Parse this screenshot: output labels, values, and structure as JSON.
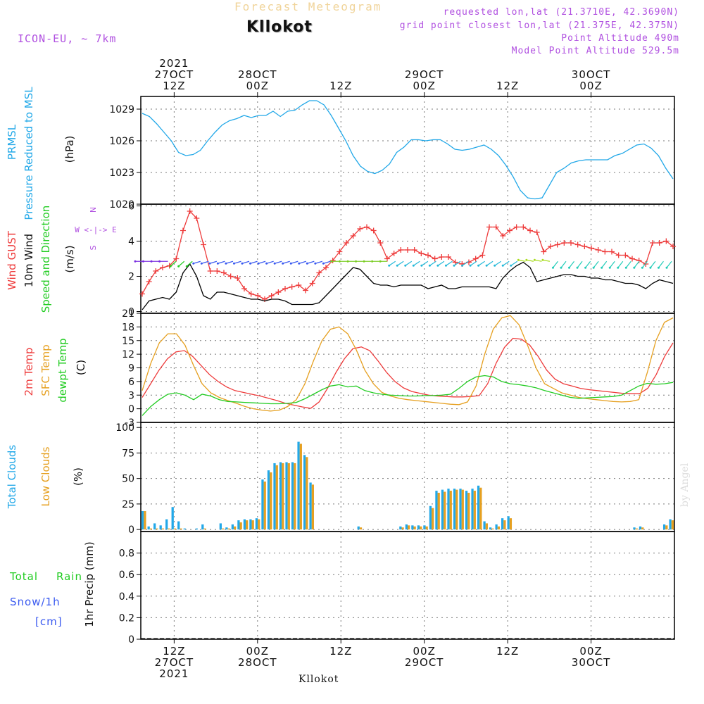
{
  "header": {
    "title": "Forecast Meteogram",
    "location": "Kllokot",
    "model": "ICON-EU, ~ 7km",
    "requested": "requested lon,lat (21.3710E, 42.3690N)",
    "grid_point": "grid point closest lon,lat (21.375E, 42.375N)",
    "point_altitude": "Point Altitude 490m",
    "model_altitude": "Model Point Altitude 529.5m",
    "watermark": "by Angel",
    "bottom_label": "Kllokot"
  },
  "time_axis": {
    "start_hour": 0,
    "end_hour": 96,
    "ticks": [
      {
        "hour": 6,
        "top": [
          "2021",
          "27OCT",
          "12Z"
        ],
        "bottom": [
          "12Z",
          "27OCT",
          "2021"
        ]
      },
      {
        "hour": 21,
        "top": [
          "28OCT",
          "00Z"
        ],
        "bottom": [
          "00Z",
          "28OCT"
        ]
      },
      {
        "hour": 36,
        "top": [
          "12Z"
        ],
        "bottom": [
          "12Z"
        ]
      },
      {
        "hour": 51,
        "top": [
          "29OCT",
          "00Z"
        ],
        "bottom": [
          "00Z",
          "29OCT"
        ]
      },
      {
        "hour": 66,
        "top": [
          "12Z"
        ],
        "bottom": [
          "12Z"
        ]
      },
      {
        "hour": 81,
        "top": [
          "30OCT",
          "00Z"
        ],
        "bottom": [
          "00Z",
          "30OCT"
        ]
      }
    ]
  },
  "colors": {
    "pressure": "#22a8e8",
    "gust": "#ee3b3b",
    "wind": "#000000",
    "temp2m": "#ee3b3b",
    "sfc": "#e6a020",
    "dewpt": "#22cc22",
    "total_clouds": "#22a8e8",
    "low_clouds": "#e6a020",
    "rain": "#22cc22",
    "snow": "#3a5af0",
    "direction": "#b050e0"
  },
  "chart_data": [
    {
      "type": "line",
      "panel": "pressure",
      "ylabels": [
        "PRMSL",
        "Pressure Reduced to MSL"
      ],
      "unit": "(hPa)",
      "ylim": [
        1020,
        1030.2
      ],
      "yticks": [
        1020,
        1023,
        1026,
        1029
      ],
      "series": [
        {
          "name": "PRMSL",
          "color": "#22a8e8",
          "values": [
            1028.6,
            1028.3,
            1027.6,
            1026.8,
            1026.0,
            1024.9,
            1024.6,
            1024.7,
            1025.1,
            1026.0,
            1026.8,
            1027.5,
            1027.9,
            1028.1,
            1028.4,
            1028.2,
            1028.4,
            1028.4,
            1028.8,
            1028.3,
            1028.8,
            1028.9,
            1029.4,
            1029.8,
            1029.8,
            1029.4,
            1028.4,
            1027.2,
            1026.0,
            1024.6,
            1023.6,
            1023.1,
            1022.9,
            1023.2,
            1023.8,
            1024.9,
            1025.4,
            1026.1,
            1026.1,
            1026.0,
            1026.1,
            1026.1,
            1025.7,
            1025.2,
            1025.1,
            1025.2,
            1025.4,
            1025.6,
            1025.2,
            1024.6,
            1023.7,
            1022.6,
            1021.3,
            1020.6,
            1020.5,
            1020.6,
            1021.8,
            1023.0,
            1023.4,
            1023.9,
            1024.1,
            1024.2,
            1024.2,
            1024.2,
            1024.2,
            1024.6,
            1024.8,
            1025.2,
            1025.6,
            1025.7,
            1025.3,
            1024.6,
            1023.4,
            1022.4
          ]
        }
      ]
    },
    {
      "type": "line",
      "panel": "wind",
      "ylabels": [
        "Wind GUST",
        "10m Wind",
        "Speed and Direction"
      ],
      "unit": "(m/s)",
      "compass": [
        "N",
        "W <-|-> E",
        "S"
      ],
      "ylim": [
        -0.1,
        6.1
      ],
      "yticks": [
        0,
        2,
        4,
        6
      ],
      "series": [
        {
          "name": "Wind GUST",
          "color": "#ee3b3b",
          "values": [
            1.0,
            1.7,
            2.3,
            2.5,
            2.6,
            3.0,
            4.6,
            5.7,
            5.3,
            3.8,
            2.3,
            2.3,
            2.2,
            2.0,
            1.9,
            1.3,
            1.0,
            0.9,
            0.7,
            0.9,
            1.1,
            1.3,
            1.4,
            1.5,
            1.2,
            1.6,
            2.2,
            2.5,
            2.9,
            3.4,
            3.9,
            4.3,
            4.7,
            4.8,
            4.6,
            3.9,
            3.0,
            3.3,
            3.5,
            3.5,
            3.5,
            3.3,
            3.2,
            3.0,
            3.1,
            3.1,
            2.8,
            2.7,
            2.8,
            3.0,
            3.2,
            4.8,
            4.8,
            4.3,
            4.6,
            4.8,
            4.8,
            4.6,
            4.5,
            3.4,
            3.7,
            3.8,
            3.9,
            3.9,
            3.8,
            3.7,
            3.6,
            3.5,
            3.4,
            3.4,
            3.2,
            3.2,
            3.0,
            2.9,
            2.7,
            3.9,
            3.9,
            4.0,
            3.7
          ]
        },
        {
          "name": "10m Wind",
          "color": "#000000",
          "values": [
            0.1,
            0.6,
            0.7,
            0.8,
            0.7,
            1.1,
            2.2,
            2.7,
            2.0,
            0.9,
            0.7,
            1.1,
            1.1,
            1.0,
            0.9,
            0.8,
            0.7,
            0.7,
            0.6,
            0.7,
            0.7,
            0.6,
            0.4,
            0.4,
            0.4,
            0.4,
            0.5,
            0.9,
            1.3,
            1.7,
            2.1,
            2.5,
            2.4,
            2.0,
            1.6,
            1.5,
            1.5,
            1.4,
            1.5,
            1.5,
            1.5,
            1.5,
            1.3,
            1.4,
            1.5,
            1.3,
            1.3,
            1.4,
            1.4,
            1.4,
            1.4,
            1.4,
            1.3,
            1.9,
            2.3,
            2.6,
            2.8,
            2.5,
            1.7,
            1.8,
            1.9,
            2.0,
            2.1,
            2.1,
            2.0,
            2.0,
            1.9,
            1.9,
            1.8,
            1.8,
            1.7,
            1.6,
            1.6,
            1.5,
            1.3,
            1.6,
            1.8,
            1.7,
            1.6
          ]
        }
      ],
      "barb_line": 2.85
    },
    {
      "type": "line",
      "panel": "temperature",
      "ylabels": [
        "2m Temp",
        "SFC Temp",
        "dewpt Temp"
      ],
      "unit": "(C)",
      "ylim": [
        -3,
        21
      ],
      "yticks": [
        -3,
        0,
        3,
        6,
        9,
        12,
        15,
        18,
        21
      ],
      "series": [
        {
          "name": "2m Temp",
          "color": "#ee3b3b",
          "values": [
            2.5,
            5.5,
            8.5,
            11.0,
            12.5,
            12.8,
            11.5,
            9.5,
            7.5,
            6.0,
            4.8,
            4.0,
            3.6,
            3.2,
            2.8,
            2.3,
            1.8,
            1.2,
            0.8,
            0.4,
            0.1,
            1.5,
            4.5,
            8.0,
            11.0,
            13.2,
            13.6,
            12.8,
            10.5,
            8.0,
            6.0,
            4.6,
            3.8,
            3.4,
            3.0,
            2.8,
            2.7,
            2.6,
            2.6,
            2.7,
            2.9,
            5.5,
            10.0,
            13.5,
            15.5,
            15.3,
            14.0,
            11.5,
            8.5,
            6.5,
            5.5,
            5.0,
            4.5,
            4.2,
            4.0,
            3.8,
            3.6,
            3.4,
            3.3,
            3.3,
            4.5,
            7.5,
            11.5,
            14.5
          ]
        },
        {
          "name": "SFC Temp",
          "color": "#e6a020",
          "values": [
            4.0,
            10.0,
            14.5,
            16.5,
            16.5,
            14.0,
            9.5,
            5.5,
            3.5,
            2.5,
            1.8,
            1.2,
            0.5,
            0.0,
            -0.3,
            -0.5,
            -0.3,
            0.5,
            2.0,
            5.5,
            10.5,
            15.0,
            17.5,
            18.0,
            16.5,
            13.0,
            8.5,
            5.5,
            3.6,
            2.8,
            2.3,
            2.0,
            1.8,
            1.6,
            1.4,
            1.2,
            1.0,
            0.9,
            1.5,
            5.0,
            12.0,
            17.5,
            20.0,
            20.5,
            18.5,
            14.0,
            9.0,
            5.5,
            4.5,
            3.5,
            3.0,
            2.5,
            2.2,
            2.0,
            1.8,
            1.6,
            1.5,
            1.6,
            2.0,
            8.0,
            15.0,
            19.0,
            20.0
          ]
        },
        {
          "name": "dewpt Temp",
          "color": "#22cc22",
          "values": [
            -1.5,
            0.5,
            2.0,
            3.2,
            3.5,
            3.0,
            2.0,
            3.2,
            2.8,
            2.0,
            1.6,
            1.5,
            1.4,
            1.3,
            1.2,
            1.1,
            1.1,
            1.2,
            1.4,
            2.2,
            3.2,
            4.2,
            5.0,
            5.3,
            4.8,
            5.0,
            4.0,
            3.5,
            3.2,
            3.0,
            2.9,
            2.8,
            2.8,
            2.9,
            2.9,
            3.0,
            3.2,
            4.5,
            6.0,
            7.0,
            7.3,
            7.0,
            6.0,
            5.5,
            5.3,
            5.0,
            4.6,
            4.0,
            3.5,
            3.0,
            2.5,
            2.3,
            2.4,
            2.5,
            2.6,
            2.7,
            3.0,
            4.0,
            5.0,
            5.6,
            5.4,
            5.5,
            5.8
          ]
        }
      ]
    },
    {
      "type": "bar",
      "panel": "clouds",
      "ylabels": [
        "Total Clouds",
        "Low Clouds"
      ],
      "unit": "(%)",
      "ylim": [
        -2,
        105
      ],
      "yticks": [
        0,
        25,
        50,
        75,
        100
      ],
      "series": [
        {
          "name": "Total Clouds",
          "color": "#22a8e8",
          "values": [
            18,
            3,
            6,
            4,
            10,
            22,
            8,
            1,
            0,
            1,
            5,
            0,
            0,
            6,
            2,
            5,
            9,
            10,
            10,
            11,
            49,
            58,
            65,
            66,
            66,
            66,
            86,
            73,
            46,
            0,
            0,
            0,
            0,
            0,
            0,
            0,
            3,
            0,
            0,
            0,
            0,
            0,
            0,
            3,
            5,
            4,
            4,
            4,
            23,
            38,
            39,
            40,
            40,
            40,
            38,
            40,
            43,
            8,
            2,
            5,
            11,
            13,
            0,
            0,
            0,
            0,
            0,
            0,
            0,
            0,
            0,
            0,
            0,
            0,
            0,
            0,
            0,
            0,
            0,
            0,
            0,
            0,
            2,
            3,
            0,
            0,
            0,
            5,
            10
          ]
        },
        {
          "name": "Low Clouds",
          "color": "#e6a020",
          "values": [
            18,
            1,
            1,
            1,
            1,
            1,
            1,
            0,
            0,
            0,
            1,
            0,
            0,
            1,
            1,
            3,
            7,
            9,
            9,
            10,
            47,
            56,
            63,
            65,
            65,
            65,
            84,
            71,
            44,
            0,
            0,
            0,
            0,
            0,
            0,
            0,
            2,
            0,
            0,
            0,
            0,
            0,
            0,
            2,
            4,
            3,
            3,
            3,
            21,
            36,
            37,
            38,
            39,
            39,
            36,
            38,
            41,
            6,
            1,
            3,
            9,
            11,
            0,
            0,
            0,
            0,
            0,
            0,
            0,
            0,
            0,
            0,
            0,
            0,
            0,
            0,
            0,
            0,
            0,
            0,
            0,
            0,
            1,
            2,
            0,
            0,
            0,
            4,
            9
          ]
        }
      ]
    },
    {
      "type": "bar",
      "panel": "precip",
      "ylabels": [
        "Total",
        "Rain",
        "Snow/1h",
        "[cm]"
      ],
      "unit": "1hr Precip (mm)",
      "ylim": [
        0,
        1.0
      ],
      "yticks": [
        0,
        0.2,
        0.4,
        0.6,
        0.8
      ],
      "series": [
        {
          "name": "Total Rain",
          "color": "#22cc22",
          "values": []
        },
        {
          "name": "Snow/1h",
          "color": "#3a5af0",
          "values": []
        }
      ]
    }
  ]
}
